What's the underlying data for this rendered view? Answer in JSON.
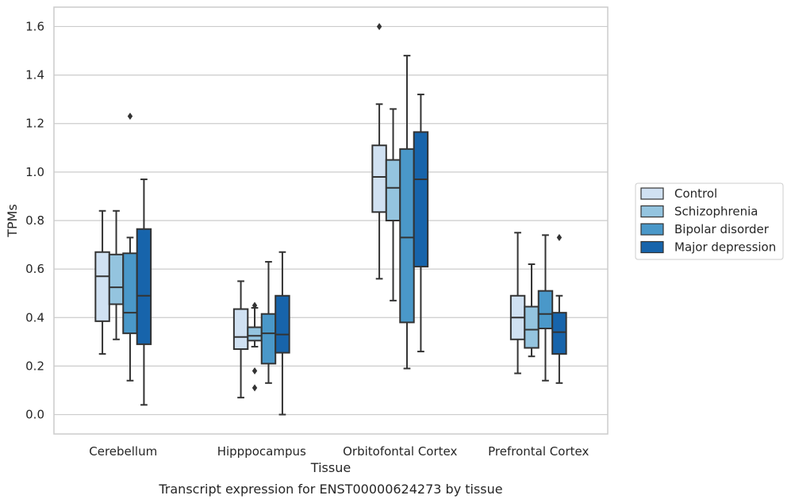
{
  "chart_data": {
    "type": "box",
    "caption": "Transcript expression for ENST00000624273 by tissue",
    "xlabel": "Tissue",
    "ylabel": "TPMs",
    "ylim": [
      -0.08,
      1.68
    ],
    "yticks": [
      0.0,
      0.2,
      0.4,
      0.6,
      0.8,
      1.0,
      1.2,
      1.4,
      1.6
    ],
    "ytick_labels": [
      "0.0",
      "0.2",
      "0.4",
      "0.6",
      "0.8",
      "1.0",
      "1.2",
      "1.4",
      "1.6"
    ],
    "grid": "horizontal",
    "legend_position": "right",
    "categories": [
      "Cerebellum",
      "Hipppocampus",
      "Orbitofontal Cortex",
      "Prefrontal Cortex"
    ],
    "series": [
      {
        "name": "Control",
        "color": "#d0e1f2",
        "boxes": [
          {
            "whislo": 0.25,
            "q1": 0.385,
            "med": 0.57,
            "q3": 0.67,
            "whishi": 0.84,
            "fliers": []
          },
          {
            "whislo": 0.07,
            "q1": 0.27,
            "med": 0.32,
            "q3": 0.435,
            "whishi": 0.55,
            "fliers": []
          },
          {
            "whislo": 0.56,
            "q1": 0.835,
            "med": 0.98,
            "q3": 1.11,
            "whishi": 1.28,
            "fliers": [
              1.6
            ]
          },
          {
            "whislo": 0.17,
            "q1": 0.31,
            "med": 0.4,
            "q3": 0.49,
            "whishi": 0.75,
            "fliers": []
          }
        ]
      },
      {
        "name": "Schizophrenia",
        "color": "#94c4df",
        "boxes": [
          {
            "whislo": 0.31,
            "q1": 0.455,
            "med": 0.525,
            "q3": 0.66,
            "whishi": 0.84,
            "fliers": []
          },
          {
            "whislo": 0.28,
            "q1": 0.305,
            "med": 0.325,
            "q3": 0.36,
            "whishi": 0.44,
            "fliers": [
              0.45,
              0.18,
              0.11
            ]
          },
          {
            "whislo": 0.47,
            "q1": 0.8,
            "med": 0.935,
            "q3": 1.05,
            "whishi": 1.26,
            "fliers": []
          },
          {
            "whislo": 0.24,
            "q1": 0.275,
            "med": 0.35,
            "q3": 0.445,
            "whishi": 0.62,
            "fliers": []
          }
        ]
      },
      {
        "name": "Bipolar disorder",
        "color": "#4a98c9",
        "boxes": [
          {
            "whislo": 0.14,
            "q1": 0.335,
            "med": 0.42,
            "q3": 0.665,
            "whishi": 0.73,
            "fliers": [
              1.23
            ]
          },
          {
            "whislo": 0.13,
            "q1": 0.21,
            "med": 0.335,
            "q3": 0.415,
            "whishi": 0.63,
            "fliers": []
          },
          {
            "whislo": 0.19,
            "q1": 0.38,
            "med": 0.73,
            "q3": 1.095,
            "whishi": 1.48,
            "fliers": []
          },
          {
            "whislo": 0.14,
            "q1": 0.355,
            "med": 0.415,
            "q3": 0.51,
            "whishi": 0.74,
            "fliers": []
          }
        ]
      },
      {
        "name": "Major depression",
        "color": "#1764ab",
        "boxes": [
          {
            "whislo": 0.04,
            "q1": 0.29,
            "med": 0.49,
            "q3": 0.765,
            "whishi": 0.97,
            "fliers": []
          },
          {
            "whislo": 0.0,
            "q1": 0.255,
            "med": 0.33,
            "q3": 0.49,
            "whishi": 0.67,
            "fliers": []
          },
          {
            "whislo": 0.26,
            "q1": 0.61,
            "med": 0.97,
            "q3": 1.165,
            "whishi": 1.32,
            "fliers": []
          },
          {
            "whislo": 0.13,
            "q1": 0.25,
            "med": 0.34,
            "q3": 0.42,
            "whishi": 0.49,
            "fliers": [
              0.73
            ]
          }
        ]
      }
    ]
  }
}
